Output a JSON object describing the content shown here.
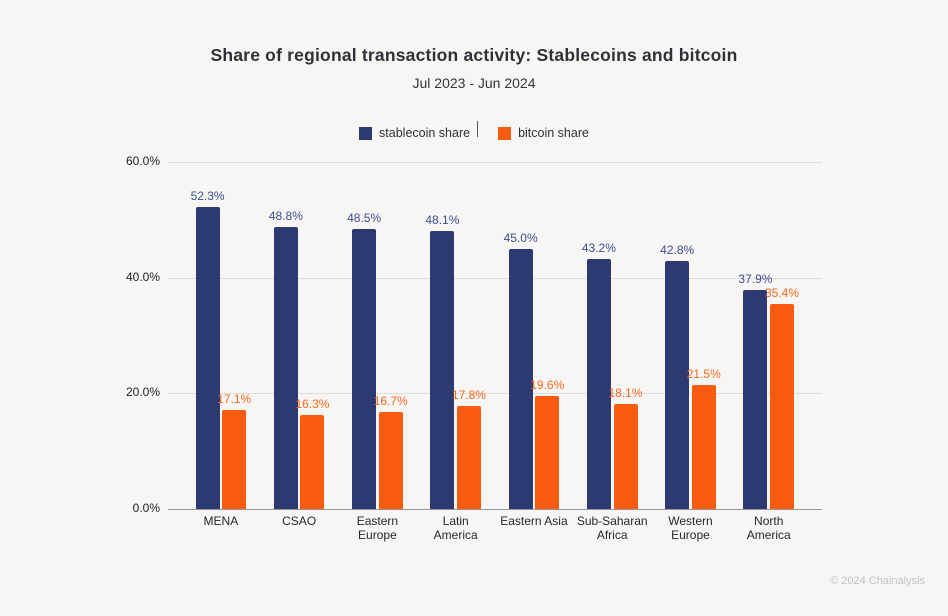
{
  "header": {
    "title": "Share of regional transaction activity: Stablecoins and bitcoin",
    "subtitle": "Jul 2023 - Jun 2024"
  },
  "legend": {
    "items": [
      {
        "label": "stablecoin share",
        "color": "#2d3a72"
      },
      {
        "label": "bitcoin share",
        "color": "#fa5c0f"
      }
    ]
  },
  "chart_data": {
    "type": "bar",
    "title": "Share of regional transaction activity: Stablecoins and bitcoin",
    "subtitle": "Jul 2023 - Jun 2024",
    "categories": [
      "MENA",
      "CSAO",
      "Eastern Europe",
      "Latin America",
      "Eastern Asia",
      "Sub-Saharan Africa",
      "Western Europe",
      "North America"
    ],
    "categories_display": [
      [
        "MENA"
      ],
      [
        "CSAO"
      ],
      [
        "Eastern",
        "Europe"
      ],
      [
        "Latin",
        "America"
      ],
      [
        "Eastern Asia"
      ],
      [
        "Sub-Saharan",
        "Africa"
      ],
      [
        "Western",
        "Europe"
      ],
      [
        "North",
        "America"
      ]
    ],
    "series": [
      {
        "name": "stablecoin share",
        "color": "#2d3a72",
        "label_color": "#3d4d8f",
        "values": [
          52.3,
          48.8,
          48.5,
          48.1,
          45.0,
          43.2,
          42.8,
          37.9
        ]
      },
      {
        "name": "bitcoin share",
        "color": "#fa5c0f",
        "label_color": "#f9671c",
        "values": [
          17.1,
          16.3,
          16.7,
          17.8,
          19.6,
          18.1,
          21.5,
          35.4
        ]
      }
    ],
    "xlabel": "",
    "ylabel": "",
    "ylim": [
      0,
      60
    ],
    "yticks": [
      {
        "value": 0,
        "label": "0.0%"
      },
      {
        "value": 20,
        "label": "20.0%"
      },
      {
        "value": 40,
        "label": "40.0%"
      },
      {
        "value": 60,
        "label": "60.0%"
      }
    ],
    "grid": "horizontal",
    "legend_position": "top",
    "value_label_format": "one_decimal_percent"
  },
  "footer": {
    "copyright": "© 2024 Chainalysis"
  }
}
